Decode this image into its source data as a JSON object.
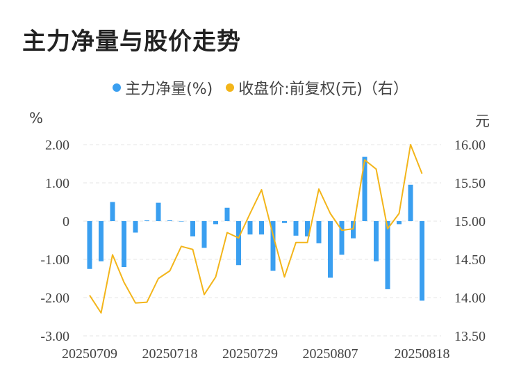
{
  "title": "主力净量与股价走势",
  "legend": {
    "series1": "主力净量(%)",
    "series2": "收盘价:前复权(元)（右）"
  },
  "units": {
    "left": "%",
    "right": "元"
  },
  "colors": {
    "bar": "#3a9ff0",
    "line": "#f3b51a",
    "grid": "#e4e4e4"
  },
  "chart_data": {
    "type": "bar",
    "x_ticks": [
      "20250709",
      "20250718",
      "20250729",
      "20250807",
      "20250818"
    ],
    "y_left_ticks": [
      "2.00",
      "1.00",
      "0",
      "-1.00",
      "-2.00",
      "-3.00"
    ],
    "y_right_ticks": [
      "16.00",
      "15.50",
      "15.00",
      "14.50",
      "14.00",
      "13.50"
    ],
    "ylim_left": [
      -3,
      2
    ],
    "ylim_right": [
      13.5,
      16
    ],
    "series": [
      {
        "name": "主力净量(%)",
        "type": "bar",
        "values": [
          -1.25,
          -1.05,
          0.5,
          -1.2,
          -0.3,
          0.02,
          0.48,
          0.02,
          0.0,
          -0.4,
          -0.7,
          -0.08,
          0.35,
          -1.15,
          -0.35,
          -0.35,
          -1.3,
          -0.05,
          -0.38,
          -0.4,
          -0.58,
          -1.48,
          -0.88,
          -0.45,
          1.68,
          -1.05,
          -1.78,
          -0.08,
          0.95,
          -2.08
        ]
      },
      {
        "name": "收盘价:前复权(元)（右）",
        "type": "line",
        "values": [
          14.03,
          13.8,
          14.56,
          14.2,
          13.93,
          13.94,
          14.25,
          14.35,
          14.67,
          14.63,
          14.04,
          14.27,
          14.85,
          14.78,
          15.1,
          15.41,
          14.82,
          14.27,
          14.72,
          14.72,
          15.42,
          15.1,
          14.88,
          14.9,
          15.8,
          15.68,
          14.9,
          15.1,
          16.0,
          15.62
        ]
      }
    ]
  }
}
